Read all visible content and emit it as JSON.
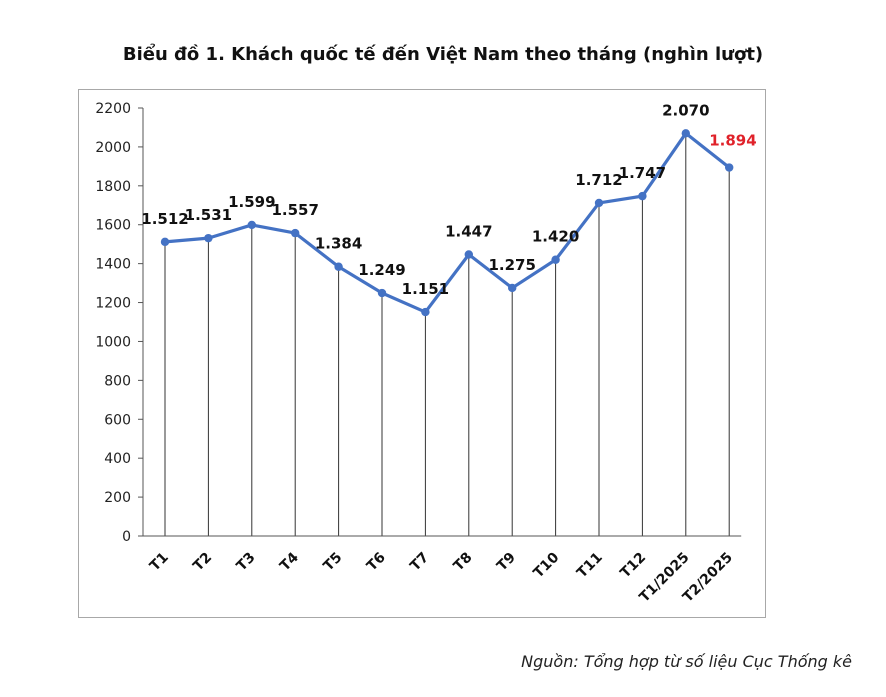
{
  "title": "Biểu đồ 1. Khách quốc tế đến Việt Nam theo tháng (nghìn lượt)",
  "source": "Nguồn: Tổng hợp từ số liệu Cục Thống kê",
  "chart_data": {
    "type": "line",
    "title": "Biểu đồ 1. Khách quốc tế đến Việt Nam theo tháng (nghìn lượt)",
    "categories": [
      "T1",
      "T2",
      "T3",
      "T4",
      "T5",
      "T6",
      "T7",
      "T8",
      "T9",
      "T10",
      "T11",
      "T12",
      "T1/2025",
      "T2/2025"
    ],
    "series": [
      {
        "values": [
          1512,
          1531,
          1599,
          1557,
          1384,
          1249,
          1151,
          1447,
          1275,
          1420,
          1712,
          1747,
          2070,
          1894
        ]
      }
    ],
    "data_labels": [
      "1.512",
      "1.531",
      "1.599",
      "1.557",
      "1.384",
      "1.249",
      "1.151",
      "1.447",
      "1.275",
      "1.420",
      "1.712",
      "1.747",
      "2.070",
      "1.894"
    ],
    "highlight_index": 13,
    "yticks": [
      0,
      200,
      400,
      600,
      800,
      1000,
      1200,
      1400,
      1600,
      1800,
      2000,
      2200
    ],
    "ylim": [
      0,
      2200
    ],
    "grid": "vertical drop lines",
    "colors": {
      "line": "#4472c4",
      "highlight_label": "#e0222a",
      "drop_line": "#333333"
    }
  }
}
